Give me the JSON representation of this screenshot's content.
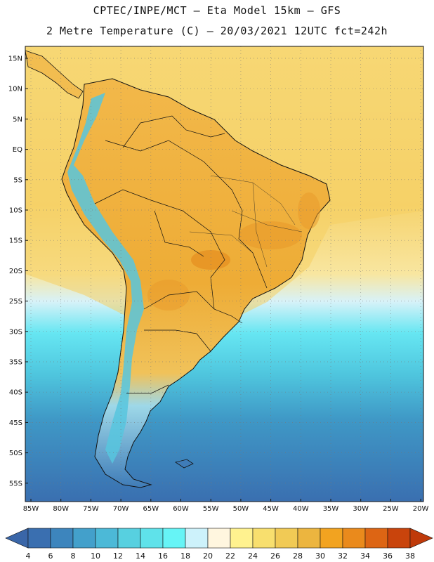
{
  "title_line1": "CPTEC/INPE/MCT  –   Eta Model 15km  –  GFS",
  "title_line2": "2 Metre Temperature (C) – 20/03/2021 12UTC fct=242h",
  "lat_labels": [
    "15N",
    "10N",
    "5N",
    "EQ",
    "5S",
    "10S",
    "15S",
    "20S",
    "25S",
    "30S",
    "35S",
    "40S",
    "45S",
    "50S",
    "55S"
  ],
  "lon_labels": [
    "85W",
    "80W",
    "75W",
    "70W",
    "65W",
    "60W",
    "55W",
    "50W",
    "45W",
    "40W",
    "35W",
    "30W",
    "25W",
    "20W"
  ],
  "colorbar": {
    "ticks": [
      "4",
      "6",
      "8",
      "10",
      "12",
      "14",
      "16",
      "18",
      "20",
      "22",
      "24",
      "26",
      "28",
      "30",
      "32",
      "34",
      "36",
      "38"
    ],
    "colors": [
      "#3a6fb0",
      "#3d85bd",
      "#43a0cb",
      "#4cb9d7",
      "#57d0e0",
      "#5fe2ea",
      "#66f4f6",
      "#cdf2fb",
      "#fff6df",
      "#fff28f",
      "#f8df6e",
      "#f1ca55",
      "#ecb53f",
      "#f2a320",
      "#ea8a1c",
      "#dd6514",
      "#c9440c"
    ],
    "under_color": "#3a66a8",
    "over_color": "#bf3a0a"
  }
}
